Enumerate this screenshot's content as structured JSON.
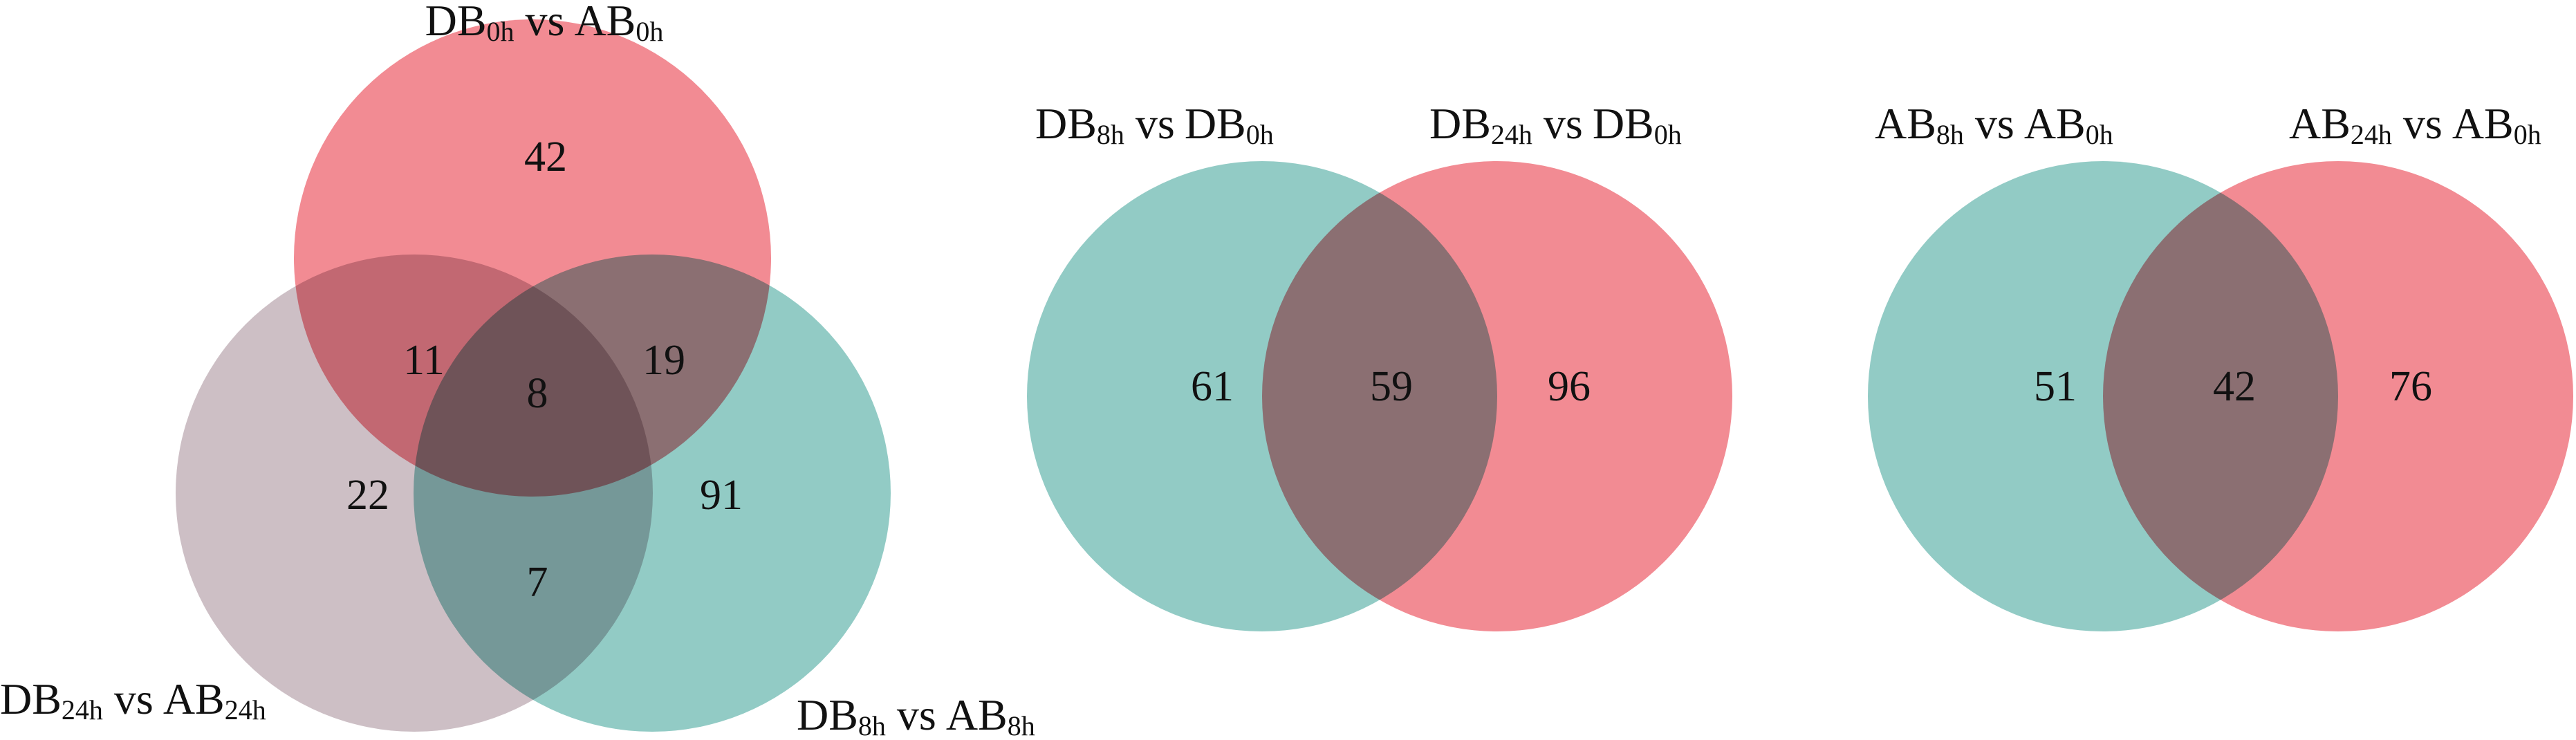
{
  "venns": [
    {
      "sets": [
        {
          "a": "DB",
          "a_sub": "0h",
          "vs": "vs",
          "b": "AB",
          "b_sub": "0h"
        },
        {
          "a": "DB",
          "a_sub": "24h",
          "vs": "vs",
          "b": "AB",
          "b_sub": "24h"
        },
        {
          "a": "DB",
          "a_sub": "8h",
          "vs": "vs",
          "b": "AB",
          "b_sub": "8h"
        }
      ],
      "regions": [
        "42",
        "11",
        "8",
        "19",
        "22",
        "91",
        "7"
      ]
    },
    {
      "sets": [
        {
          "a": "DB",
          "a_sub": "8h",
          "vs": "vs",
          "b": "DB",
          "b_sub": "0h"
        },
        {
          "a": "DB",
          "a_sub": "24h",
          "vs": "vs",
          "b": "DB",
          "b_sub": "0h"
        }
      ],
      "regions": [
        "61",
        "59",
        "96"
      ]
    },
    {
      "sets": [
        {
          "a": "AB",
          "a_sub": "8h",
          "vs": "vs",
          "b": "AB",
          "b_sub": "0h"
        },
        {
          "a": "AB",
          "a_sub": "24h",
          "vs": "vs",
          "b": "AB",
          "b_sub": "0h"
        }
      ],
      "regions": [
        "51",
        "42",
        "76"
      ]
    }
  ]
}
